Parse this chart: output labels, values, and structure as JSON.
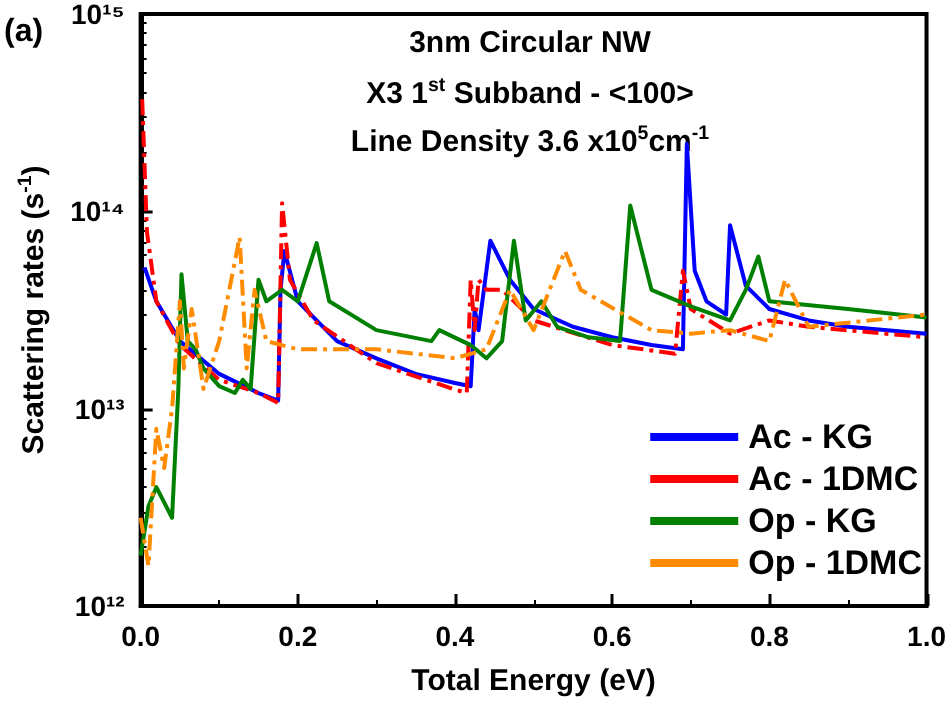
{
  "chart_data": {
    "type": "line",
    "title": "3nm Circular NW",
    "xlabel": "Total Energy (eV)",
    "ylabel": "Scattering rates (s$^{-1}$)",
    "annotations": [
      "X3 1$^{st}$ Subband - <100>",
      "Line Density 3.6 x10$^{5}$cm$^{-1}$",
      "(a)"
    ],
    "log": "y",
    "grid": false,
    "legend": "bottom right",
    "marker": "none",
    "xlim": [
      0,
      1
    ],
    "xticks": [
      {
        "value": 0,
        "label": "0.0"
      },
      {
        "value": 0.2,
        "label": "0.2"
      },
      {
        "value": 0.4,
        "label": "0.4"
      },
      {
        "value": 0.6,
        "label": "0.6"
      },
      {
        "value": 0.8,
        "label": "0.8"
      },
      {
        "value": 1,
        "label": "1.0"
      }
    ],
    "ylim": [
      1000000000000.0,
      1000000000000000.0
    ],
    "yticks": [
      {
        "value": 1000000000000.0,
        "label": "10¹²"
      },
      {
        "value": 10000000000000.0,
        "label": "10¹³"
      },
      {
        "value": 100000000000000.0,
        "label": "10¹⁴"
      },
      {
        "value": 1000000000000000.0,
        "label": "10¹⁵"
      }
    ],
    "series": [
      {
        "name": "Ac - KG",
        "color": "#0000ff",
        "line_style": "solid",
        "x": [
          0.005,
          0.02,
          0.05,
          0.1,
          0.15,
          0.175,
          0.178,
          0.183,
          0.2,
          0.25,
          0.3,
          0.35,
          0.4,
          0.42,
          0.425,
          0.43,
          0.445,
          0.47,
          0.5,
          0.55,
          0.6,
          0.65,
          0.69,
          0.695,
          0.705,
          0.72,
          0.745,
          0.75,
          0.77,
          0.8,
          0.85,
          0.9,
          0.95,
          1.0
        ],
        "values": [
          52000000000000.0,
          35000000000000.0,
          22000000000000.0,
          15000000000000.0,
          12000000000000.0,
          11000000000000.0,
          40000000000000.0,
          63000000000000.0,
          35000000000000.0,
          22000000000000.0,
          18000000000000.0,
          15000000000000.0,
          13500000000000.0,
          13000000000000.0,
          32000000000000.0,
          25000000000000.0,
          71000000000000.0,
          45000000000000.0,
          32000000000000.0,
          26000000000000.0,
          23000000000000.0,
          21000000000000.0,
          20000000000000.0,
          220000000000000.0,
          50000000000000.0,
          35000000000000.0,
          30000000000000.0,
          85000000000000.0,
          42000000000000.0,
          32000000000000.0,
          28000000000000.0,
          26000000000000.0,
          25000000000000.0,
          24000000000000.0
        ]
      },
      {
        "name": "Ac - 1DMC",
        "color": "#ff0000",
        "line_style": "dashed",
        "x": [
          0.002,
          0.008,
          0.02,
          0.05,
          0.1,
          0.15,
          0.175,
          0.18,
          0.19,
          0.22,
          0.3,
          0.4,
          0.415,
          0.42,
          0.425,
          0.43,
          0.44,
          0.46,
          0.5,
          0.6,
          0.68,
          0.69,
          0.7,
          0.75,
          0.8,
          0.85,
          1.0
        ],
        "values": [
          370000000000000.0,
          79000000000000.0,
          35000000000000.0,
          21000000000000.0,
          14000000000000.0,
          12000000000000.0,
          10700000000000.0,
          110000000000000.0,
          45000000000000.0,
          28000000000000.0,
          17000000000000.0,
          12500000000000.0,
          12000000000000.0,
          45000000000000.0,
          25000000000000.0,
          45000000000000.0,
          40000000000000.0,
          40000000000000.0,
          28000000000000.0,
          21000000000000.0,
          19000000000000.0,
          50000000000000.0,
          32000000000000.0,
          24000000000000.0,
          28000000000000.0,
          26000000000000.0,
          23000000000000.0
        ]
      },
      {
        "name": "Op - KG",
        "color": "#008000",
        "line_style": "solid",
        "x": [
          0.0,
          0.01,
          0.02,
          0.04,
          0.048,
          0.052,
          0.06,
          0.07,
          0.08,
          0.1,
          0.12,
          0.13,
          0.14,
          0.15,
          0.16,
          0.18,
          0.2,
          0.224,
          0.24,
          0.3,
          0.37,
          0.38,
          0.42,
          0.44,
          0.46,
          0.475,
          0.49,
          0.51,
          0.53,
          0.57,
          0.61,
          0.623,
          0.65,
          0.7,
          0.75,
          0.77,
          0.786,
          0.8,
          0.9,
          1.0
        ],
        "values": [
          1800000000000.0,
          3200000000000.0,
          4000000000000.0,
          2800000000000.0,
          12600000000000.0,
          48000000000000.0,
          22000000000000.0,
          20000000000000.0,
          16000000000000.0,
          13000000000000.0,
          12000000000000.0,
          14000000000000.0,
          12600000000000.0,
          45000000000000.0,
          35000000000000.0,
          40000000000000.0,
          35000000000000.0,
          69000000000000.0,
          35000000000000.0,
          25000000000000.0,
          22000000000000.0,
          25000000000000.0,
          21000000000000.0,
          18000000000000.0,
          22000000000000.0,
          71000000000000.0,
          28000000000000.0,
          35000000000000.0,
          26000000000000.0,
          23000000000000.0,
          22000000000000.0,
          107000000000000.0,
          40000000000000.0,
          33000000000000.0,
          28000000000000.0,
          40000000000000.0,
          59000000000000.0,
          35000000000000.0,
          32000000000000.0,
          29000000000000.0
        ]
      },
      {
        "name": "Op - 1DMC",
        "color": "#ff8c00",
        "line_style": "dashed",
        "x": [
          0.0,
          0.01,
          0.02,
          0.03,
          0.04,
          0.05,
          0.055,
          0.065,
          0.08,
          0.1,
          0.126,
          0.135,
          0.145,
          0.16,
          0.2,
          0.3,
          0.4,
          0.44,
          0.47,
          0.5,
          0.54,
          0.56,
          0.65,
          0.7,
          0.75,
          0.8,
          0.82,
          0.85,
          1.0
        ],
        "values": [
          2800000000000.0,
          1600000000000.0,
          7900000000000.0,
          5000000000000.0,
          10000000000000.0,
          35000000000000.0,
          16000000000000.0,
          32000000000000.0,
          12600000000000.0,
          22000000000000.0,
          74000000000000.0,
          16000000000000.0,
          40000000000000.0,
          22000000000000.0,
          20000000000000.0,
          20000000000000.0,
          18000000000000.0,
          20000000000000.0,
          40000000000000.0,
          25000000000000.0,
          63000000000000.0,
          40000000000000.0,
          25000000000000.0,
          24000000000000.0,
          25000000000000.0,
          22000000000000.0,
          45000000000000.0,
          26000000000000.0,
          30000000000000.0
        ]
      }
    ]
  }
}
